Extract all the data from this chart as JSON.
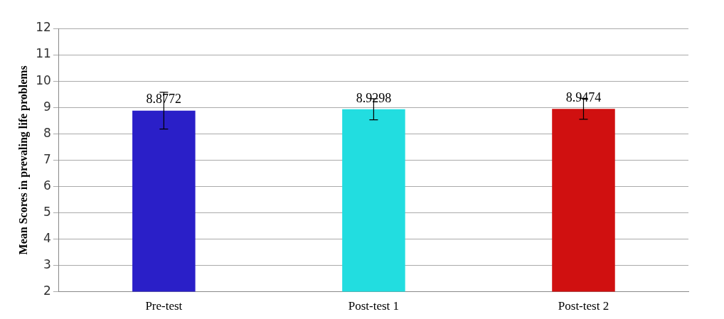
{
  "chart_data": {
    "type": "bar",
    "ylabel": "Mean Scores in prevaling life problems",
    "categories": [
      "Pre-test",
      "Post-test 1",
      "Post-test 2"
    ],
    "values": [
      8.8772,
      8.9298,
      8.9474
    ],
    "colors": [
      "#2a1fc8",
      "#22dde0",
      "#d01010"
    ],
    "errors": [
      0.7,
      0.4,
      0.4
    ],
    "ylim": [
      2,
      12
    ],
    "yticks": [
      2,
      3,
      4,
      5,
      6,
      7,
      8,
      9,
      10,
      11,
      12
    ],
    "grid": "y",
    "data_labels": true
  }
}
